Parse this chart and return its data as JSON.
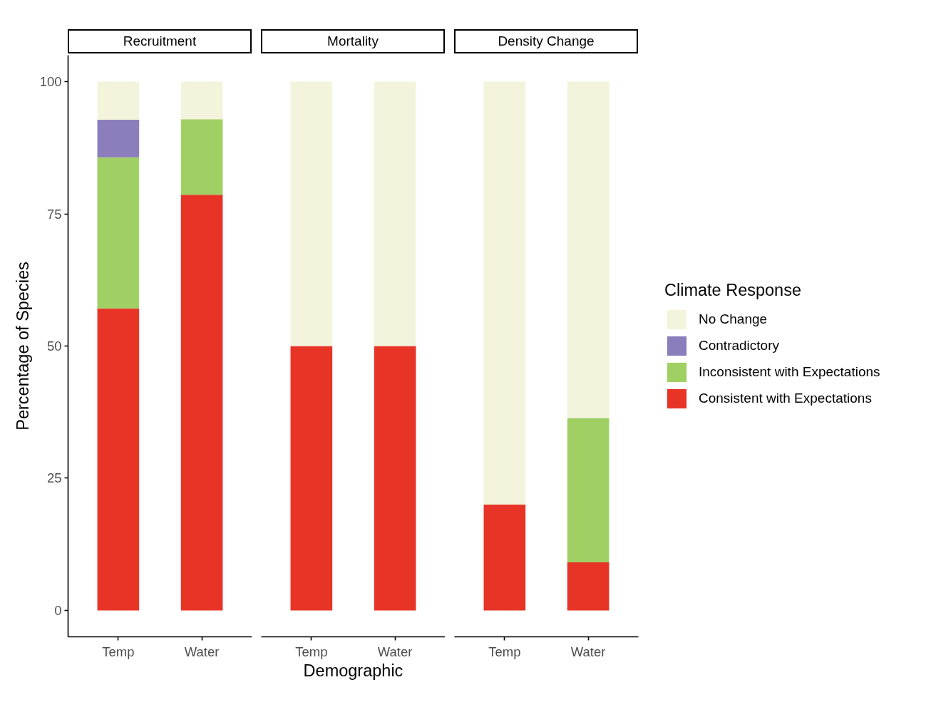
{
  "chart_data": [
    {
      "type": "bar",
      "title": "Recruitment",
      "ylabel": "Percentage of Species",
      "categories": [
        "Temp",
        "Water"
      ],
      "stacked": true,
      "ylim": [
        -5,
        105
      ],
      "yticks": [
        0,
        25,
        50,
        75,
        100
      ],
      "series": [
        {
          "color": "#e83427",
          "values": [
            57.1,
            78.6
          ]
        },
        {
          "color": "#a0d063",
          "values": [
            28.6,
            14.3
          ]
        },
        {
          "color": "#8c7dbd",
          "values": [
            7.1,
            null
          ]
        },
        {
          "color": "#f4f4dc",
          "values": [
            7.2,
            7.1
          ]
        }
      ]
    },
    {
      "type": "bar",
      "title": "Mortality",
      "xlabel": "Demographic",
      "categories": [
        "Temp",
        "Water"
      ],
      "stacked": true,
      "yticks": [
        0,
        25,
        50,
        75,
        100
      ],
      "tick_labels": "x",
      "series": [
        {
          "color": "#e83427",
          "values": [
            50,
            50
          ]
        },
        {
          "color": "#f4f4dc",
          "values": [
            50,
            50
          ]
        }
      ]
    },
    {
      "type": "bar",
      "title": "Density Change",
      "categories": [
        "Temp",
        "Water"
      ],
      "stacked": true,
      "yticks": [
        0,
        25,
        50,
        75,
        100
      ],
      "tick_labels": "x",
      "legend": "right",
      "legend_title": "Climate Response",
      "series": [
        {
          "name": "Consistent with Expectations",
          "color": "#e83427",
          "values": [
            20,
            9.1
          ]
        },
        {
          "name": "Inconsistent with Expectations",
          "color": "#a0d063",
          "values": [
            null,
            27.3
          ]
        },
        {
          "name": "Contradictory",
          "color": "#8c7dbd",
          "values": [
            null,
            null
          ]
        },
        {
          "name": "No Change",
          "color": "#f4f4dc",
          "values": [
            80,
            63.6
          ]
        }
      ]
    }
  ]
}
